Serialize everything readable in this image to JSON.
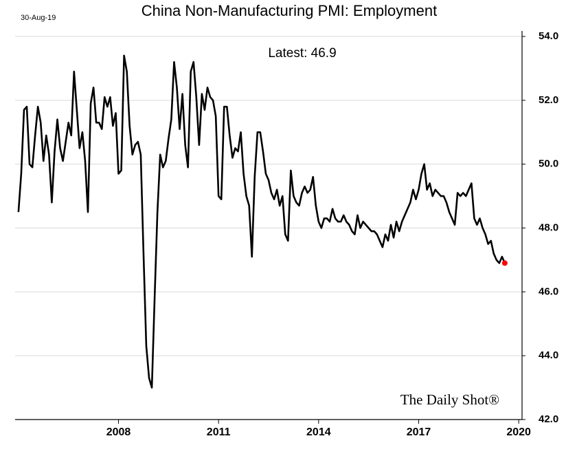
{
  "chart_data": {
    "type": "line",
    "title": "China Non-Manufacturing PMI: Employment",
    "date_note": "30-Aug-19",
    "annotation": "Latest:  46.9",
    "watermark": "The Daily Shot®",
    "x": [
      2005,
      2005.083,
      2005.167,
      2005.25,
      2005.333,
      2005.417,
      2005.5,
      2005.583,
      2005.667,
      2005.75,
      2005.833,
      2005.917,
      2006,
      2006.083,
      2006.167,
      2006.25,
      2006.333,
      2006.417,
      2006.5,
      2006.583,
      2006.667,
      2006.75,
      2006.833,
      2006.917,
      2007,
      2007.083,
      2007.167,
      2007.25,
      2007.333,
      2007.417,
      2007.5,
      2007.583,
      2007.667,
      2007.75,
      2007.833,
      2007.917,
      2008,
      2008.083,
      2008.167,
      2008.25,
      2008.333,
      2008.417,
      2008.5,
      2008.583,
      2008.667,
      2008.75,
      2008.833,
      2008.917,
      2009,
      2009.083,
      2009.167,
      2009.25,
      2009.333,
      2009.417,
      2009.5,
      2009.583,
      2009.667,
      2009.75,
      2009.833,
      2009.917,
      2010,
      2010.083,
      2010.167,
      2010.25,
      2010.333,
      2010.417,
      2010.5,
      2010.583,
      2010.667,
      2010.75,
      2010.833,
      2010.917,
      2011,
      2011.083,
      2011.167,
      2011.25,
      2011.333,
      2011.417,
      2011.5,
      2011.583,
      2011.667,
      2011.75,
      2011.833,
      2011.917,
      2012,
      2012.083,
      2012.167,
      2012.25,
      2012.333,
      2012.417,
      2012.5,
      2012.583,
      2012.667,
      2012.75,
      2012.833,
      2012.917,
      2013,
      2013.083,
      2013.167,
      2013.25,
      2013.333,
      2013.417,
      2013.5,
      2013.583,
      2013.667,
      2013.75,
      2013.833,
      2013.917,
      2014,
      2014.083,
      2014.167,
      2014.25,
      2014.333,
      2014.417,
      2014.5,
      2014.583,
      2014.667,
      2014.75,
      2014.833,
      2014.917,
      2015,
      2015.083,
      2015.167,
      2015.25,
      2015.333,
      2015.417,
      2015.5,
      2015.583,
      2015.667,
      2015.75,
      2015.833,
      2015.917,
      2016,
      2016.083,
      2016.167,
      2016.25,
      2016.333,
      2016.417,
      2016.5,
      2016.583,
      2016.667,
      2016.75,
      2016.833,
      2016.917,
      2017,
      2017.083,
      2017.167,
      2017.25,
      2017.333,
      2017.417,
      2017.5,
      2017.583,
      2017.667,
      2017.75,
      2017.833,
      2017.917,
      2018,
      2018.083,
      2018.167,
      2018.25,
      2018.333,
      2018.417,
      2018.5,
      2018.583,
      2018.667,
      2018.75,
      2018.833,
      2018.917,
      2019,
      2019.083,
      2019.167,
      2019.25,
      2019.333,
      2019.417,
      2019.5,
      2019.583
    ],
    "series": [
      {
        "color": "#000000",
        "values": [
          48.5,
          49.7,
          51.7,
          51.8,
          50.0,
          49.9,
          50.9,
          51.8,
          51.3,
          50.1,
          50.9,
          50.3,
          48.8,
          50.4,
          51.4,
          50.5,
          50.1,
          50.7,
          51.3,
          50.9,
          52.9,
          51.7,
          50.5,
          51.0,
          50.1,
          48.5,
          51.9,
          52.4,
          51.3,
          51.3,
          51.1,
          52.1,
          51.8,
          52.1,
          51.2,
          51.6,
          49.7,
          49.8,
          53.4,
          52.9,
          51.2,
          50.3,
          50.6,
          50.7,
          50.3,
          47.2,
          44.3,
          43.3,
          43.0,
          45.8,
          48.5,
          50.3,
          49.9,
          50.1,
          50.8,
          51.4,
          53.2,
          52.4,
          51.1,
          52.2,
          50.6,
          49.9,
          52.9,
          53.2,
          52.1,
          50.6,
          52.2,
          51.7,
          52.4,
          52.1,
          52.0,
          51.5,
          49.0,
          48.9,
          51.8,
          51.8,
          50.9,
          50.2,
          50.5,
          50.4,
          51.0,
          49.7,
          49.0,
          48.7,
          47.1,
          49.6,
          51.0,
          51.0,
          50.4,
          49.7,
          49.5,
          49.1,
          48.9,
          49.2,
          48.7,
          49.0,
          47.8,
          47.6,
          49.8,
          49.0,
          48.8,
          48.7,
          49.1,
          49.3,
          49.1,
          49.2,
          49.6,
          48.7,
          48.2,
          48.0,
          48.3,
          48.3,
          48.2,
          48.6,
          48.3,
          48.2,
          48.2,
          48.4,
          48.2,
          48.1,
          47.9,
          47.8,
          48.4,
          48.0,
          48.2,
          48.1,
          48.0,
          47.9,
          47.9,
          47.8,
          47.6,
          47.4,
          47.8,
          47.6,
          48.1,
          47.7,
          48.2,
          47.9,
          48.2,
          48.4,
          48.6,
          48.8,
          49.2,
          48.9,
          49.2,
          49.7,
          50.0,
          49.2,
          49.4,
          49.0,
          49.2,
          49.1,
          49.0,
          49.0,
          48.8,
          48.5,
          48.3,
          48.1,
          49.1,
          49.0,
          49.1,
          49.0,
          49.2,
          49.4,
          48.3,
          48.1,
          48.3,
          48.0,
          47.8,
          47.5,
          47.6,
          47.2,
          47.0,
          46.9,
          47.1,
          46.9
        ]
      }
    ],
    "last_point_color": "#ff0000",
    "xlim": [
      2004.9,
      2020.1
    ],
    "xticks": [
      2008,
      2011,
      2014,
      2017,
      2020
    ],
    "ylim": [
      42,
      54
    ],
    "yticks": [
      {
        "value": 42,
        "label": "42.0"
      },
      {
        "value": 44,
        "label": "44.0"
      },
      {
        "value": 46,
        "label": "46.0"
      },
      {
        "value": 48,
        "label": "48.0"
      },
      {
        "value": 50,
        "label": "50.0"
      },
      {
        "value": 52,
        "label": "52.0"
      },
      {
        "value": 54,
        "label": "54.0"
      }
    ],
    "grid": true
  }
}
